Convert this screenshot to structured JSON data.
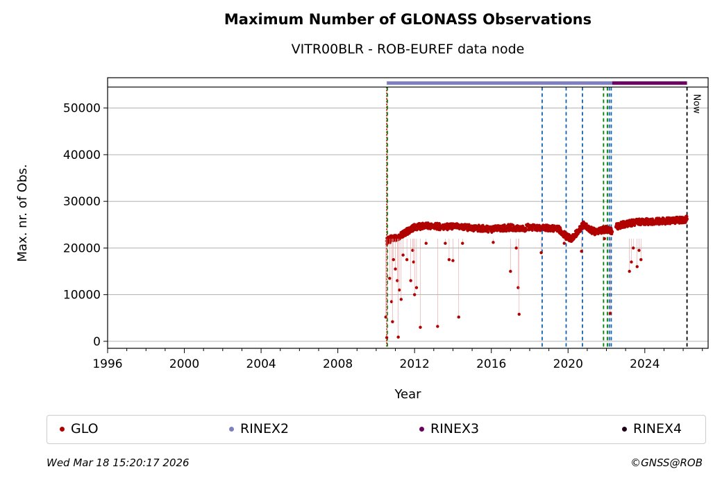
{
  "chart_data": {
    "type": "scatter",
    "title": "Maximum Number of GLONASS Observations",
    "subtitle": "VITR00BLR - ROB-EUREF data node",
    "xlabel": "Year",
    "ylabel": "Max. nr. of Obs.",
    "xlim": [
      1996,
      2027.3
    ],
    "ylim": [
      -1500,
      56500
    ],
    "xticks": [
      1996,
      2000,
      2004,
      2008,
      2012,
      2016,
      2020,
      2024
    ],
    "yticks": [
      0,
      10000,
      20000,
      30000,
      40000,
      50000
    ],
    "grid": "horizontal",
    "series": [
      {
        "name": "GLO",
        "color": "#b00000",
        "segments": [
          {
            "x": [
              2010.55,
              2010.8,
              2011.2,
              2011.6,
              2012.0,
              2012.5,
              2013.0,
              2013.5,
              2014.0,
              2014.5,
              2015.0,
              2015.5,
              2016.0,
              2016.5,
              2017.0,
              2017.5,
              2018.0,
              2018.5,
              2019.0,
              2019.5,
              2019.9,
              2020.2,
              2020.5,
              2020.8,
              2021.1,
              2021.4,
              2021.7,
              2022.0,
              2022.3
            ],
            "y": [
              21500,
              22000,
              22500,
              23500,
              24500,
              24700,
              24700,
              24500,
              24600,
              24500,
              24300,
              24200,
              24000,
              24200,
              24400,
              24000,
              24500,
              24200,
              24300,
              24100,
              22500,
              22000,
              23500,
              25000,
              24000,
              23500,
              23800,
              24000,
              23500
            ]
          },
          {
            "x": [
              2022.5,
              2022.8,
              2023.1,
              2023.5,
              2023.9,
              2024.3,
              2024.7,
              2025.1,
              2025.5,
              2025.9,
              2026.2
            ],
            "y": [
              24500,
              25000,
              25200,
              25500,
              25700,
              25600,
              25700,
              25800,
              25900,
              26000,
              26200
            ]
          }
        ],
        "outliers": [
          {
            "x": 2010.5,
            "y": 5200
          },
          {
            "x": 2010.55,
            "y": 800
          },
          {
            "x": 2010.7,
            "y": 13500
          },
          {
            "x": 2010.8,
            "y": 8500
          },
          {
            "x": 2010.85,
            "y": 4200
          },
          {
            "x": 2010.9,
            "y": 17500
          },
          {
            "x": 2011.0,
            "y": 15500
          },
          {
            "x": 2011.1,
            "y": 13000
          },
          {
            "x": 2011.2,
            "y": 11000
          },
          {
            "x": 2011.15,
            "y": 900
          },
          {
            "x": 2011.3,
            "y": 9000
          },
          {
            "x": 2011.4,
            "y": 18500
          },
          {
            "x": 2011.6,
            "y": 17500
          },
          {
            "x": 2011.8,
            "y": 13000
          },
          {
            "x": 2011.9,
            "y": 19500
          },
          {
            "x": 2011.95,
            "y": 17000
          },
          {
            "x": 2012.0,
            "y": 10000
          },
          {
            "x": 2012.1,
            "y": 11500
          },
          {
            "x": 2012.3,
            "y": 3000
          },
          {
            "x": 2012.6,
            "y": 21000
          },
          {
            "x": 2013.2,
            "y": 3200
          },
          {
            "x": 2013.6,
            "y": 21000
          },
          {
            "x": 2013.8,
            "y": 17500
          },
          {
            "x": 2014.0,
            "y": 17300
          },
          {
            "x": 2014.3,
            "y": 5200
          },
          {
            "x": 2014.5,
            "y": 21000
          },
          {
            "x": 2016.1,
            "y": 21200
          },
          {
            "x": 2017.0,
            "y": 15000
          },
          {
            "x": 2017.4,
            "y": 11500
          },
          {
            "x": 2017.45,
            "y": 5800
          },
          {
            "x": 2017.3,
            "y": 20000
          },
          {
            "x": 2018.6,
            "y": 19000
          },
          {
            "x": 2019.8,
            "y": 21000
          },
          {
            "x": 2020.7,
            "y": 19300
          },
          {
            "x": 2021.9,
            "y": 22000
          },
          {
            "x": 2022.2,
            "y": 6000
          },
          {
            "x": 2023.2,
            "y": 15000
          },
          {
            "x": 2023.3,
            "y": 17000
          },
          {
            "x": 2023.4,
            "y": 20000
          },
          {
            "x": 2023.6,
            "y": 16000
          },
          {
            "x": 2023.7,
            "y": 19500
          },
          {
            "x": 2023.8,
            "y": 17500
          }
        ]
      },
      {
        "name": "RINEX2",
        "color": "#7d7fbf",
        "bar_x": [
          2010.55,
          2022.3
        ]
      },
      {
        "name": "RINEX3",
        "color": "#6a005f",
        "bar_x": [
          2022.3,
          2026.2
        ]
      },
      {
        "name": "RINEX4",
        "color": "#200018",
        "bar_x": []
      }
    ],
    "event_lines": [
      {
        "x": 2010.55,
        "color": "#cc0000",
        "style": "dotted"
      },
      {
        "x": 2010.58,
        "color": "#008000",
        "style": "dashed"
      },
      {
        "x": 2018.65,
        "color": "#1060b0",
        "style": "dashed"
      },
      {
        "x": 2019.9,
        "color": "#1060b0",
        "style": "dashed"
      },
      {
        "x": 2020.75,
        "color": "#1060b0",
        "style": "dashed"
      },
      {
        "x": 2021.85,
        "color": "#008000",
        "style": "dashed"
      },
      {
        "x": 2022.05,
        "color": "#008000",
        "style": "dashed"
      },
      {
        "x": 2022.15,
        "color": "#1060b0",
        "style": "dashed"
      },
      {
        "x": 2022.25,
        "color": "#1060b0",
        "style": "dashed"
      },
      {
        "x": 2026.2,
        "color": "#000000",
        "style": "dashed"
      }
    ],
    "now_label": "Now",
    "top_band_y": 54500
  },
  "legend": {
    "items": [
      {
        "label": "GLO",
        "color": "#b00000"
      },
      {
        "label": "RINEX2",
        "color": "#7d7fbf"
      },
      {
        "label": "RINEX3",
        "color": "#6a005f"
      },
      {
        "label": "RINEX4",
        "color": "#200018"
      }
    ]
  },
  "footer": {
    "timestamp": "Wed Mar 18 15:20:17 2026",
    "copyright": "©GNSS@ROB"
  }
}
